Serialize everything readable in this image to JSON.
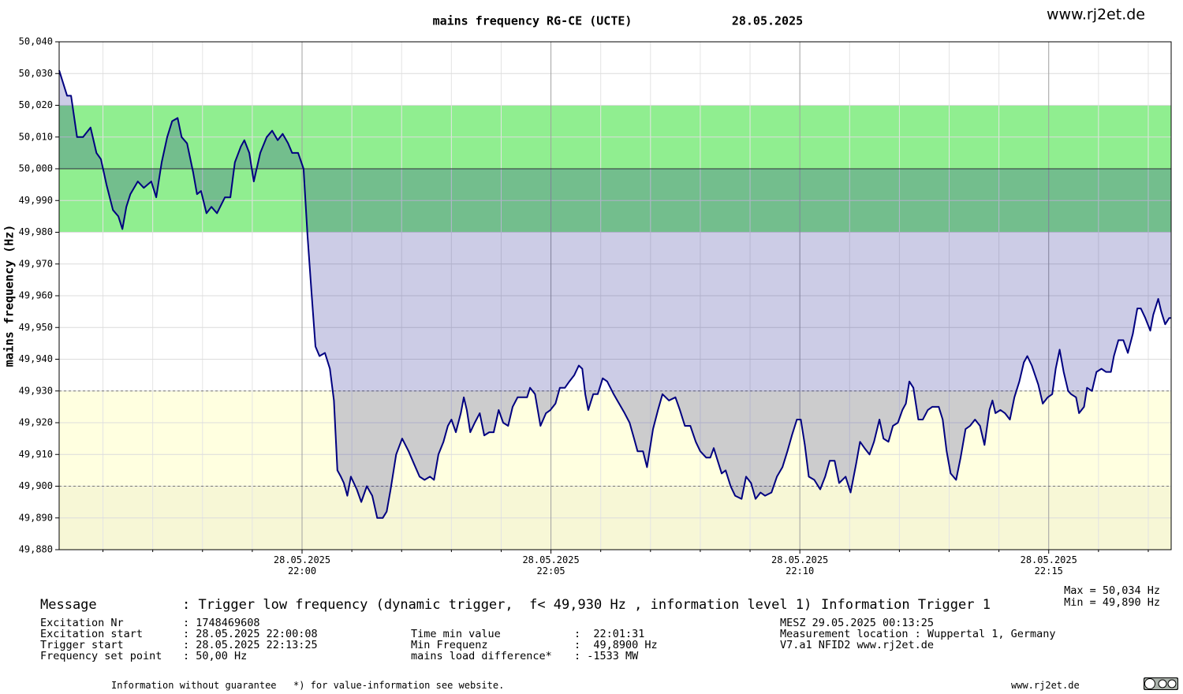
{
  "chart_data": {
    "type": "line",
    "title": "mains frequency RG-CE (UCTE)",
    "date": "28.05.2025",
    "site": "www.rj2et.de",
    "ylabel": "mains frequency (Hz)",
    "xlim": [
      1315.12,
      1337.46
    ],
    "ylim": [
      49.88,
      50.04
    ],
    "yticks": [
      {
        "value": 50.04,
        "label": "50,040"
      },
      {
        "value": 50.03,
        "label": "50,030"
      },
      {
        "value": 50.02,
        "label": "50,020"
      },
      {
        "value": 50.01,
        "label": "50,010"
      },
      {
        "value": 50.0,
        "label": "50,000"
      },
      {
        "value": 49.99,
        "label": "49,990"
      },
      {
        "value": 49.98,
        "label": "49,980"
      },
      {
        "value": 49.97,
        "label": "49,970"
      },
      {
        "value": 49.96,
        "label": "49,960"
      },
      {
        "value": 49.95,
        "label": "49,950"
      },
      {
        "value": 49.94,
        "label": "49,940"
      },
      {
        "value": 49.93,
        "label": "49,930"
      },
      {
        "value": 49.92,
        "label": "49,920"
      },
      {
        "value": 49.91,
        "label": "49,910"
      },
      {
        "value": 49.9,
        "label": "49,900"
      },
      {
        "value": 49.89,
        "label": "49,890"
      },
      {
        "value": 49.88,
        "label": "49,880"
      }
    ],
    "xticks": [
      {
        "value": 1320,
        "label": "28.05.2025 22:00"
      },
      {
        "value": 1325,
        "label": "28.05.2025 22:05"
      },
      {
        "value": 1330,
        "label": "28.05.2025 22:10"
      },
      {
        "value": 1335,
        "label": "28.05.2025 22:15"
      }
    ],
    "xticks_minor": [
      1316,
      1317,
      1318,
      1319,
      1321,
      1322,
      1323,
      1324,
      1326,
      1327,
      1328,
      1329,
      1331,
      1332,
      1333,
      1334,
      1336,
      1337
    ],
    "grid": true,
    "bands": [
      {
        "from": 49.98,
        "to": 50.02,
        "color": "#90ee90"
      },
      {
        "from": 49.9,
        "to": 49.93,
        "color": "#ffffe0"
      },
      {
        "from": 49.88,
        "to": 49.9,
        "color": "#f7f7d6"
      }
    ],
    "reference_lines": [
      49.93,
      49.9
    ],
    "baseline": 50.0,
    "fill_color": "#000080",
    "x": [
      1315.12,
      1315.28,
      1315.36,
      1315.48,
      1315.6,
      1315.75,
      1315.87,
      1315.96,
      1316.07,
      1316.2,
      1316.31,
      1316.39,
      1316.47,
      1316.55,
      1316.7,
      1316.82,
      1316.97,
      1317.07,
      1317.18,
      1317.29,
      1317.39,
      1317.5,
      1317.58,
      1317.69,
      1317.81,
      1317.89,
      1317.97,
      1318.08,
      1318.18,
      1318.29,
      1318.45,
      1318.56,
      1318.65,
      1318.77,
      1318.84,
      1318.94,
      1319.03,
      1319.16,
      1319.29,
      1319.4,
      1319.51,
      1319.61,
      1319.72,
      1319.8,
      1319.92,
      1320.03,
      1320.11,
      1320.19,
      1320.27,
      1320.35,
      1320.46,
      1320.56,
      1320.64,
      1320.71,
      1320.78,
      1320.84,
      1320.91,
      1320.98,
      1321.1,
      1321.19,
      1321.3,
      1321.41,
      1321.51,
      1321.62,
      1321.7,
      1321.78,
      1321.89,
      1322.01,
      1322.14,
      1322.25,
      1322.36,
      1322.46,
      1322.57,
      1322.65,
      1322.74,
      1322.84,
      1322.93,
      1323.0,
      1323.09,
      1323.19,
      1323.25,
      1323.31,
      1323.38,
      1323.47,
      1323.57,
      1323.66,
      1323.76,
      1323.85,
      1323.95,
      1324.04,
      1324.14,
      1324.23,
      1324.33,
      1324.42,
      1324.52,
      1324.58,
      1324.68,
      1324.79,
      1324.9,
      1324.99,
      1325.09,
      1325.18,
      1325.28,
      1325.37,
      1325.47,
      1325.56,
      1325.63,
      1325.69,
      1325.75,
      1325.85,
      1325.94,
      1326.04,
      1326.13,
      1326.26,
      1326.37,
      1326.48,
      1326.58,
      1326.67,
      1326.74,
      1326.85,
      1326.93,
      1327.05,
      1327.15,
      1327.24,
      1327.37,
      1327.5,
      1327.59,
      1327.69,
      1327.8,
      1327.91,
      1328.0,
      1328.12,
      1328.2,
      1328.27,
      1328.35,
      1328.43,
      1328.51,
      1328.61,
      1328.7,
      1328.83,
      1328.92,
      1329.02,
      1329.11,
      1329.21,
      1329.3,
      1329.43,
      1329.54,
      1329.65,
      1329.75,
      1329.84,
      1329.94,
      1330.02,
      1330.1,
      1330.18,
      1330.29,
      1330.41,
      1330.51,
      1330.6,
      1330.7,
      1330.79,
      1330.92,
      1331.02,
      1331.13,
      1331.21,
      1331.3,
      1331.4,
      1331.49,
      1331.6,
      1331.68,
      1331.78,
      1331.87,
      1331.97,
      1332.06,
      1332.13,
      1332.2,
      1332.28,
      1332.38,
      1332.47,
      1332.57,
      1332.66,
      1332.79,
      1332.87,
      1332.95,
      1333.03,
      1333.14,
      1333.23,
      1333.33,
      1333.42,
      1333.52,
      1333.62,
      1333.71,
      1333.81,
      1333.87,
      1333.93,
      1334.03,
      1334.12,
      1334.22,
      1334.31,
      1334.41,
      1334.5,
      1334.57,
      1334.66,
      1334.79,
      1334.88,
      1334.98,
      1335.07,
      1335.14,
      1335.22,
      1335.3,
      1335.39,
      1335.45,
      1335.55,
      1335.61,
      1335.71,
      1335.77,
      1335.87,
      1335.96,
      1336.06,
      1336.15,
      1336.25,
      1336.31,
      1336.4,
      1336.5,
      1336.59,
      1336.69,
      1336.78,
      1336.85,
      1336.94,
      1337.04,
      1337.1,
      1337.2,
      1337.26,
      1337.34,
      1337.42,
      1337.46
    ],
    "series": [
      {
        "color": "#000080",
        "values": [
          50.031,
          50.023,
          50.023,
          50.01,
          50.01,
          50.013,
          50.005,
          50.003,
          49.995,
          49.987,
          49.985,
          49.981,
          49.988,
          49.992,
          49.996,
          49.994,
          49.996,
          49.991,
          50.002,
          50.01,
          50.015,
          50.016,
          50.01,
          50.008,
          49.999,
          49.992,
          49.993,
          49.986,
          49.988,
          49.986,
          49.991,
          49.991,
          50.002,
          50.007,
          50.009,
          50.005,
          49.996,
          50.005,
          50.01,
          50.012,
          50.009,
          50.011,
          50.008,
          50.005,
          50.005,
          50.0,
          49.979,
          49.961,
          49.944,
          49.941,
          49.942,
          49.937,
          49.927,
          49.905,
          49.903,
          49.901,
          49.897,
          49.903,
          49.899,
          49.895,
          49.9,
          49.897,
          49.89,
          49.89,
          49.892,
          49.899,
          49.91,
          49.915,
          49.911,
          49.907,
          49.903,
          49.902,
          49.903,
          49.902,
          49.91,
          49.914,
          49.919,
          49.921,
          49.917,
          49.923,
          49.928,
          49.924,
          49.917,
          49.92,
          49.923,
          49.916,
          49.917,
          49.917,
          49.924,
          49.92,
          49.919,
          49.925,
          49.928,
          49.928,
          49.928,
          49.931,
          49.929,
          49.919,
          49.923,
          49.924,
          49.926,
          49.931,
          49.931,
          49.933,
          49.935,
          49.938,
          49.937,
          49.929,
          49.924,
          49.929,
          49.929,
          49.934,
          49.933,
          49.929,
          49.926,
          49.923,
          49.92,
          49.915,
          49.911,
          49.911,
          49.906,
          49.918,
          49.924,
          49.929,
          49.927,
          49.928,
          49.924,
          49.919,
          49.919,
          49.914,
          49.911,
          49.909,
          49.909,
          49.912,
          49.908,
          49.904,
          49.905,
          49.9,
          49.897,
          49.896,
          49.903,
          49.901,
          49.896,
          49.898,
          49.897,
          49.898,
          49.903,
          49.906,
          49.911,
          49.916,
          49.921,
          49.921,
          49.913,
          49.903,
          49.902,
          49.899,
          49.903,
          49.908,
          49.908,
          49.901,
          49.903,
          49.898,
          49.907,
          49.914,
          49.912,
          49.91,
          49.914,
          49.921,
          49.915,
          49.914,
          49.919,
          49.92,
          49.924,
          49.926,
          49.933,
          49.931,
          49.921,
          49.921,
          49.924,
          49.925,
          49.925,
          49.921,
          49.911,
          49.904,
          49.902,
          49.909,
          49.918,
          49.919,
          49.921,
          49.919,
          49.913,
          49.924,
          49.927,
          49.923,
          49.924,
          49.923,
          49.921,
          49.928,
          49.933,
          49.939,
          49.941,
          49.938,
          49.932,
          49.926,
          49.928,
          49.929,
          49.937,
          49.943,
          49.936,
          49.93,
          49.929,
          49.928,
          49.923,
          49.925,
          49.931,
          49.93,
          49.936,
          49.937,
          49.936,
          49.936,
          49.941,
          49.946,
          49.946,
          49.942,
          49.948,
          49.956,
          49.956,
          49.953,
          49.949,
          49.954,
          49.959,
          49.955,
          49.951,
          49.953,
          49.953
        ]
      }
    ]
  },
  "footer": {
    "message_label": "Message",
    "message": ": Trigger low frequency (dynamic trigger,  f< 49,930 Hz , information level 1)",
    "info_trigger": "Information Trigger 1",
    "max": "Max = 50,034 Hz",
    "min": "Min = 49,890 Hz",
    "rows_left": [
      [
        "Excitation Nr",
        ": 1748469608"
      ],
      [
        "Excitation start",
        ": 28.05.2025 22:00:08"
      ],
      [
        "Trigger start",
        ": 28.05.2025 22:13:25"
      ],
      [
        "Frequency set point",
        ": 50,00 Hz"
      ]
    ],
    "rows_mid": [
      [
        "Time min value",
        ":  22:01:31"
      ],
      [
        "Min Frequenz",
        ":  49,8900 Hz"
      ],
      [
        "mains load difference*",
        ": -1533 MW"
      ]
    ],
    "rows_right": [
      "MESZ 29.05.2025 00:13:25",
      "Measurement location : Wuppertal 1, Germany",
      "V7.a1 NFID2 www.rj2et.de"
    ],
    "disclaimer": "Information without guarantee",
    "note": "*) for value-information see website.",
    "site": "www.rj2et.de"
  }
}
